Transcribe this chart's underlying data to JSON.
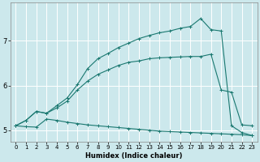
{
  "xlabel": "Humidex (Indice chaleur)",
  "bg_color": "#cce8ec",
  "grid_color": "#ffffff",
  "line_color": "#1a7870",
  "xlim": [
    -0.5,
    23.5
  ],
  "ylim": [
    4.75,
    7.85
  ],
  "xticks": [
    0,
    1,
    2,
    3,
    4,
    5,
    6,
    7,
    8,
    9,
    10,
    11,
    12,
    13,
    14,
    15,
    16,
    17,
    18,
    19,
    20,
    21,
    22,
    23
  ],
  "yticks": [
    5,
    6,
    7
  ],
  "line1_x": [
    0,
    1,
    2,
    3,
    4,
    5,
    6,
    7,
    8,
    9,
    10,
    11,
    12,
    13,
    14,
    15,
    16,
    17,
    18,
    19,
    20,
    21,
    22,
    23
  ],
  "line1_y": [
    5.1,
    5.08,
    5.07,
    5.25,
    5.22,
    5.18,
    5.15,
    5.12,
    5.1,
    5.08,
    5.06,
    5.04,
    5.02,
    5.0,
    4.98,
    4.97,
    4.96,
    4.95,
    4.94,
    4.93,
    4.92,
    4.91,
    4.9,
    4.88
  ],
  "line2_x": [
    0,
    1,
    2,
    3,
    4,
    5,
    6,
    7,
    8,
    9,
    10,
    11,
    12,
    13,
    14,
    15,
    16,
    17,
    18,
    19,
    20,
    21,
    22,
    23
  ],
  "line2_y": [
    5.1,
    5.22,
    5.42,
    5.38,
    5.5,
    5.65,
    5.9,
    6.1,
    6.25,
    6.35,
    6.45,
    6.52,
    6.55,
    6.6,
    6.62,
    6.63,
    6.64,
    6.65,
    6.65,
    6.7,
    5.9,
    5.85,
    5.12,
    5.1
  ],
  "line3_x": [
    0,
    1,
    2,
    3,
    4,
    5,
    6,
    7,
    8,
    9,
    10,
    11,
    12,
    13,
    14,
    15,
    16,
    17,
    18,
    19,
    20,
    21,
    22,
    23
  ],
  "line3_y": [
    5.1,
    5.22,
    5.42,
    5.38,
    5.55,
    5.72,
    6.02,
    6.38,
    6.6,
    6.72,
    6.85,
    6.95,
    7.05,
    7.12,
    7.18,
    7.22,
    7.28,
    7.32,
    7.5,
    7.25,
    7.22,
    5.1,
    4.95,
    4.88
  ]
}
